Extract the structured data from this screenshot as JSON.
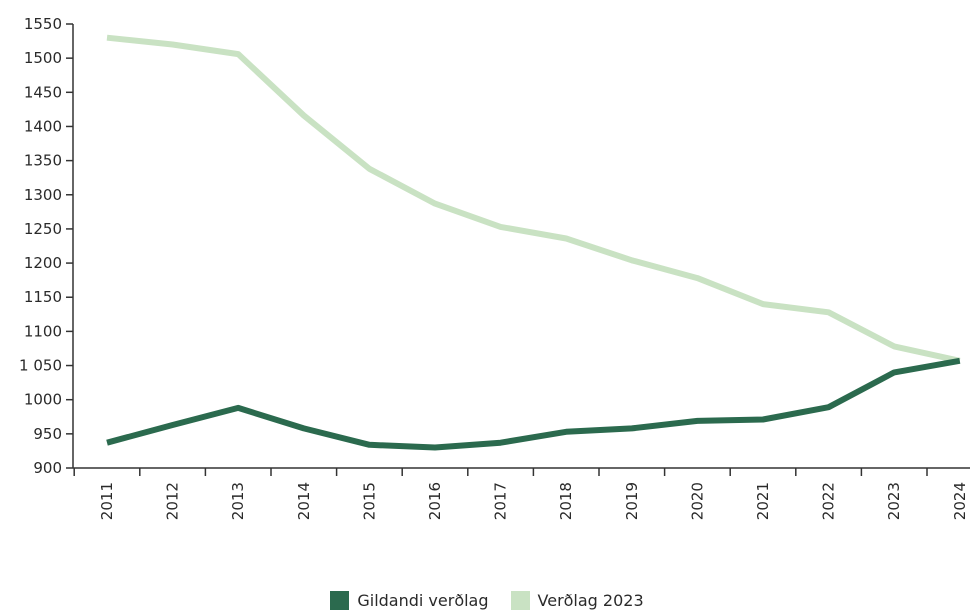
{
  "chart_data": {
    "type": "line",
    "title": "",
    "xlabel": "",
    "ylabel": "",
    "categories": [
      "2011",
      "2012",
      "2013",
      "2014",
      "2015",
      "2016",
      "2017",
      "2018",
      "2019",
      "2020",
      "2021",
      "2022",
      "2023",
      "2024"
    ],
    "ylim": [
      900,
      1550
    ],
    "yticks": [
      900,
      950,
      1000,
      1050,
      1100,
      1150,
      1200,
      1250,
      1300,
      1350,
      1400,
      1450,
      1500,
      1550
    ],
    "ytick_labels": [
      "900",
      "950",
      "1000",
      "1 050",
      "1100",
      "1150",
      "1200",
      "1250",
      "1300",
      "1350",
      "1400",
      "1450",
      "1500",
      "1550"
    ],
    "grid": false,
    "legend_position": "bottom-center",
    "series": [
      {
        "name": "Gildandi verðlag",
        "color": "#2b6a4e",
        "values": [
          937,
          963,
          988,
          958,
          934,
          930,
          937,
          953,
          958,
          969,
          971,
          989,
          1040,
          1057
        ]
      },
      {
        "name": "Verðlag 2023",
        "color": "#c9e2c3",
        "values": [
          1530,
          1520,
          1506,
          1416,
          1338,
          1287,
          1253,
          1236,
          1204,
          1178,
          1140,
          1128,
          1078,
          1057
        ]
      }
    ]
  }
}
